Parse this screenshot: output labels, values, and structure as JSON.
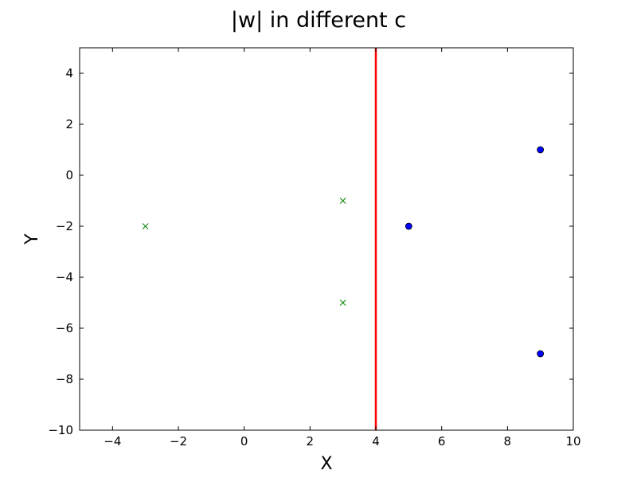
{
  "chart_data": {
    "type": "scatter",
    "title": "|w| in different c",
    "xlabel": "X",
    "ylabel": "Y",
    "xlim": [
      -5,
      10
    ],
    "ylim": [
      -10,
      5
    ],
    "xticks": [
      -4,
      -2,
      0,
      2,
      4,
      6,
      8,
      10
    ],
    "yticks": [
      -10,
      -8,
      -6,
      -4,
      -2,
      0,
      2,
      4
    ],
    "grid": false,
    "series": [
      {
        "marker": "x",
        "color": "#008000",
        "x": [
          -3,
          3,
          3
        ],
        "y": [
          -2,
          -1,
          -5
        ]
      },
      {
        "marker": "o",
        "color": "#0000ff",
        "x": [
          5,
          9,
          9
        ],
        "y": [
          -2,
          1,
          -7
        ]
      }
    ],
    "lines": [
      {
        "type": "vertical",
        "x": 4,
        "color": "#ff0000"
      }
    ]
  }
}
